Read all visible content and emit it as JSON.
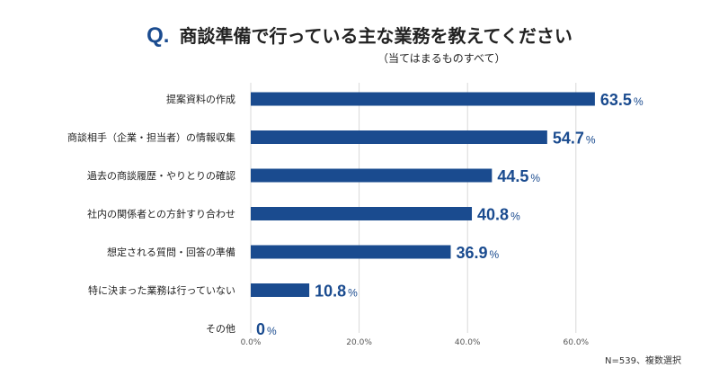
{
  "header": {
    "q_label": "Q.",
    "question": "商談準備で行っている主な業務を教えてください",
    "subtitle": "（当てはまるものすべて）"
  },
  "footnote": "N=539、複数選択",
  "colors": {
    "bar": "#1a4b8f",
    "text": "#222222",
    "grid": "#d9d9d9",
    "value": "#1a4b8f"
  },
  "chart_data": {
    "type": "bar",
    "orientation": "horizontal",
    "categories": [
      "提案資料の作成",
      "商談相手（企業・担当者）の情報収集",
      "過去の商談履歴・やりとりの確認",
      "社内の関係者との方針すり合わせ",
      "想定される質問・回答の準備",
      "特に決まった業務は行っていない",
      "その他"
    ],
    "values": [
      63.5,
      54.7,
      44.5,
      40.8,
      36.9,
      10.8,
      0
    ],
    "value_labels": [
      "63.5",
      "54.7",
      "44.5",
      "40.8",
      "36.9",
      "10.8",
      "0"
    ],
    "value_suffix": "%",
    "xlim": [
      0,
      75
    ],
    "xticks": [
      0,
      20,
      40,
      60
    ],
    "xtick_labels": [
      "0.0%",
      "20.0%",
      "40.0%",
      "60.0%"
    ],
    "grid": true
  }
}
